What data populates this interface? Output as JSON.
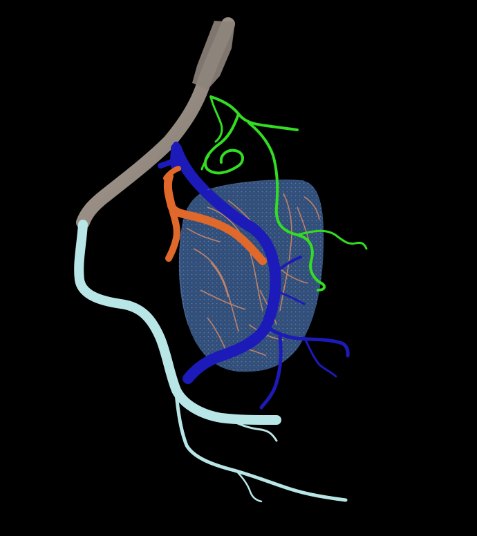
{
  "scene": {
    "background": "#000000",
    "colors": {
      "main_vessel_upper": "#9a8f86",
      "main_vessel_lower": "#b8e6e6",
      "organ_surface": "#3a5a8c",
      "organ_texture": "#6d8dbd",
      "orange_vessel": "#e0682a",
      "orange_fine": "#d8906a",
      "blue_vein": "#1c1ab8",
      "green_vessel": "#33dd22"
    },
    "structures": [
      "main-vessel-upper",
      "main-vessel-lower",
      "organ",
      "orange-artery",
      "blue-vein",
      "green-vessel"
    ]
  }
}
